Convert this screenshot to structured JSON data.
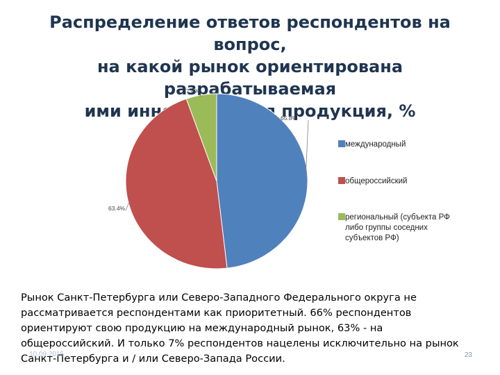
{
  "title": {
    "line1": "Распределение ответов респондентов на вопрос,",
    "line2": "на какой рынок ориентирована разрабатываемая",
    "line3": "ими инновационная продукция, %"
  },
  "chart_data": {
    "type": "pie",
    "categories": [
      "международный",
      "общероссийский",
      "региональный (субъекта РФ либо группы соседних субъектов РФ)"
    ],
    "values": [
      65.8,
      63.4,
      7.4
    ],
    "data_labels": [
      "65.8%",
      "63.4%",
      "7.4%"
    ],
    "colors": [
      "#4f81bd",
      "#c0504d",
      "#9bbb59"
    ],
    "legend_position": "right",
    "legend_lines": [
      [
        "международный"
      ],
      [
        "общероссийский"
      ],
      [
        "региональный (субъекта РФ",
        "либо группы соседних",
        "субъектов РФ)"
      ]
    ]
  },
  "body": {
    "text": "Рынок Санкт-Петербурга или Северо-Западного Федерального округа не рассматривается респондентами как приоритетный. 66% респондентов ориентируют свою продукцию на международный рынок, 63% - на общероссийский. И только 7% респондентов нацелены исключительно на рынок Санкт-Петербурга и / или Северо-Запада России."
  },
  "footer": {
    "date": "10.09.2015",
    "page": "23"
  }
}
